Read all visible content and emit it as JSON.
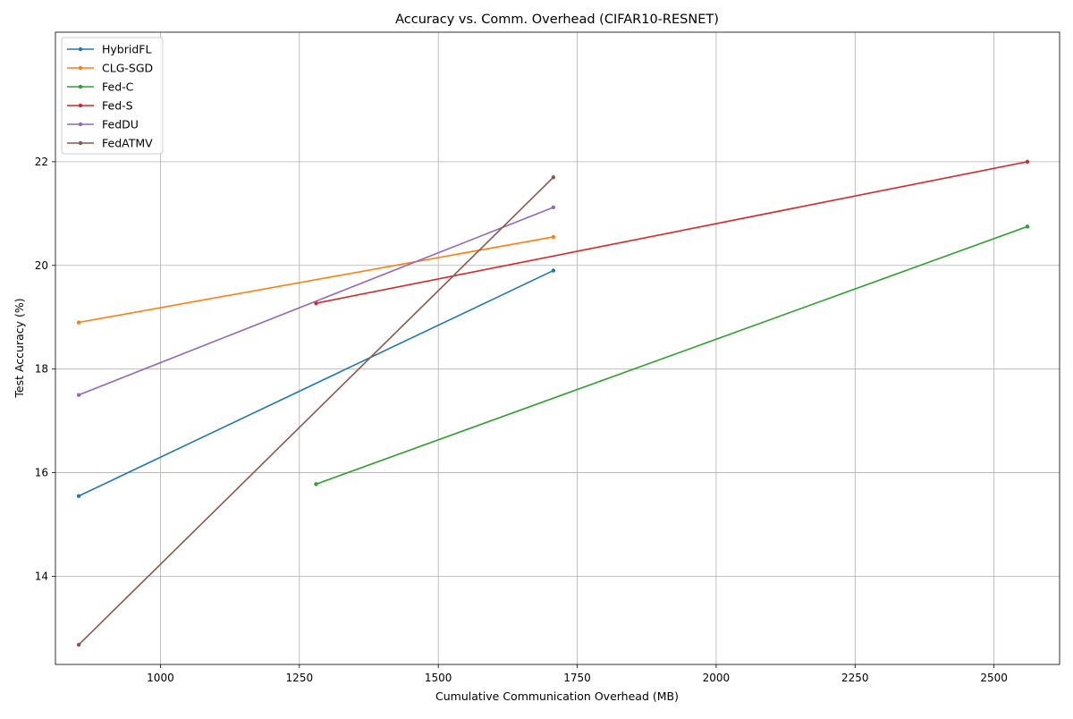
{
  "chart_data": {
    "type": "line",
    "title": "Accuracy vs. Comm. Overhead (CIFAR10-RESNET)",
    "xlabel": "Cumulative Communication Overhead (MB)",
    "ylabel": "Test Accuracy (%)",
    "xlim": [
      811,
      2618
    ],
    "ylim": [
      12.3,
      24.5
    ],
    "xticks": [
      1000,
      1250,
      1500,
      1750,
      2000,
      2250,
      2500
    ],
    "xtick_labels": [
      "1000",
      "1250",
      "1500",
      "1750",
      "2000",
      "2250",
      "2500"
    ],
    "yticks": [
      14,
      16,
      18,
      20,
      22
    ],
    "ytick_labels": [
      "14",
      "16",
      "18",
      "20",
      "22"
    ],
    "grid": true,
    "legend_position": "top-left",
    "series": [
      {
        "name": "HybridFL",
        "color": "#1f77b4",
        "points": [
          [
            853,
            15.55
          ],
          [
            1707,
            19.9
          ]
        ]
      },
      {
        "name": "CLG-SGD",
        "color": "#ff7f0e",
        "points": [
          [
            853,
            18.9
          ],
          [
            1707,
            20.55
          ]
        ]
      },
      {
        "name": "Fed-C",
        "color": "#2ca02c",
        "points": [
          [
            1280,
            15.78
          ],
          [
            2560,
            20.75
          ]
        ]
      },
      {
        "name": "Fed-S",
        "color": "#d62728",
        "points": [
          [
            1280,
            19.27
          ],
          [
            2560,
            22.0
          ]
        ]
      },
      {
        "name": "FedDU",
        "color": "#9467bd",
        "points": [
          [
            853,
            17.5
          ],
          [
            1707,
            21.12
          ]
        ]
      },
      {
        "name": "FedATMV",
        "color": "#8c564b",
        "points": [
          [
            853,
            12.68
          ],
          [
            1707,
            21.7
          ]
        ]
      }
    ]
  }
}
